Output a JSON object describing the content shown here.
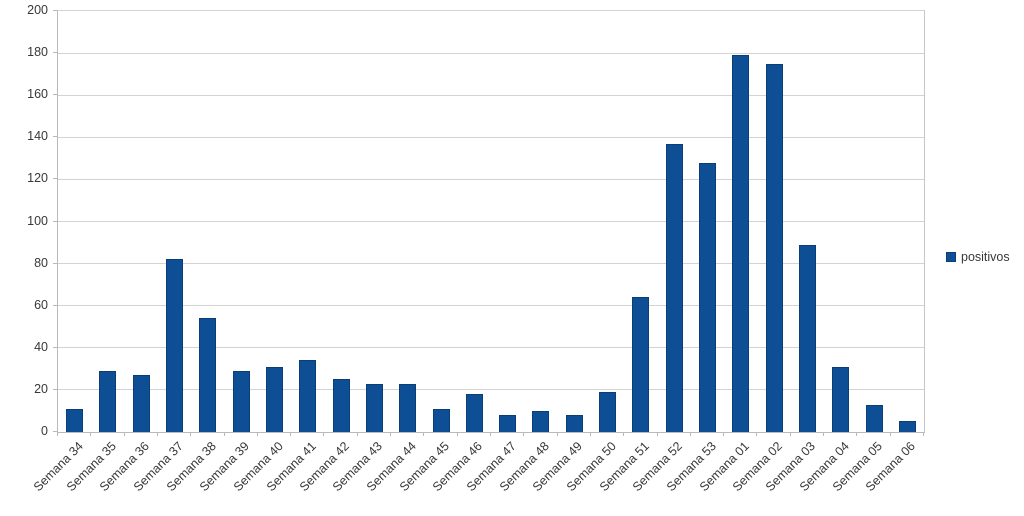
{
  "chart_data": {
    "type": "bar",
    "title": "",
    "categories": [
      "Semana 34",
      "Semana 35",
      "Semana 36",
      "Semana 37",
      "Semana 38",
      "Semana 39",
      "Semana 40",
      "Semana 41",
      "Semana 42",
      "Semana 43",
      "Semana 44",
      "Semana 45",
      "Semana 46",
      "Semana 47",
      "Semana 48",
      "Semana 49",
      "Semana 50",
      "Semana 51",
      "Semana 52",
      "Semana 53",
      "Semana 01",
      "Semana 02",
      "Semana 03",
      "Semana 04",
      "Semana 05",
      "Semana 06"
    ],
    "series": [
      {
        "name": "positivos",
        "values": [
          11,
          29,
          27,
          82,
          54,
          29,
          31,
          34,
          25,
          23,
          23,
          11,
          18,
          8,
          10,
          8,
          19,
          64,
          137,
          128,
          179,
          175,
          89,
          31,
          13,
          5
        ]
      }
    ],
    "xlabel": "",
    "ylabel": "",
    "ylim": [
      0,
      200
    ],
    "yticks": [
      0,
      20,
      40,
      60,
      80,
      100,
      120,
      140,
      160,
      180,
      200
    ],
    "grid": true,
    "legend_position": "right",
    "colors": {
      "bar_fill": "#0d4e94",
      "bar_border": "#0a3e78",
      "gridline": "#d3d3d3",
      "axis": "#b9b9b9",
      "text": "#383838",
      "background": "#ffffff"
    }
  }
}
